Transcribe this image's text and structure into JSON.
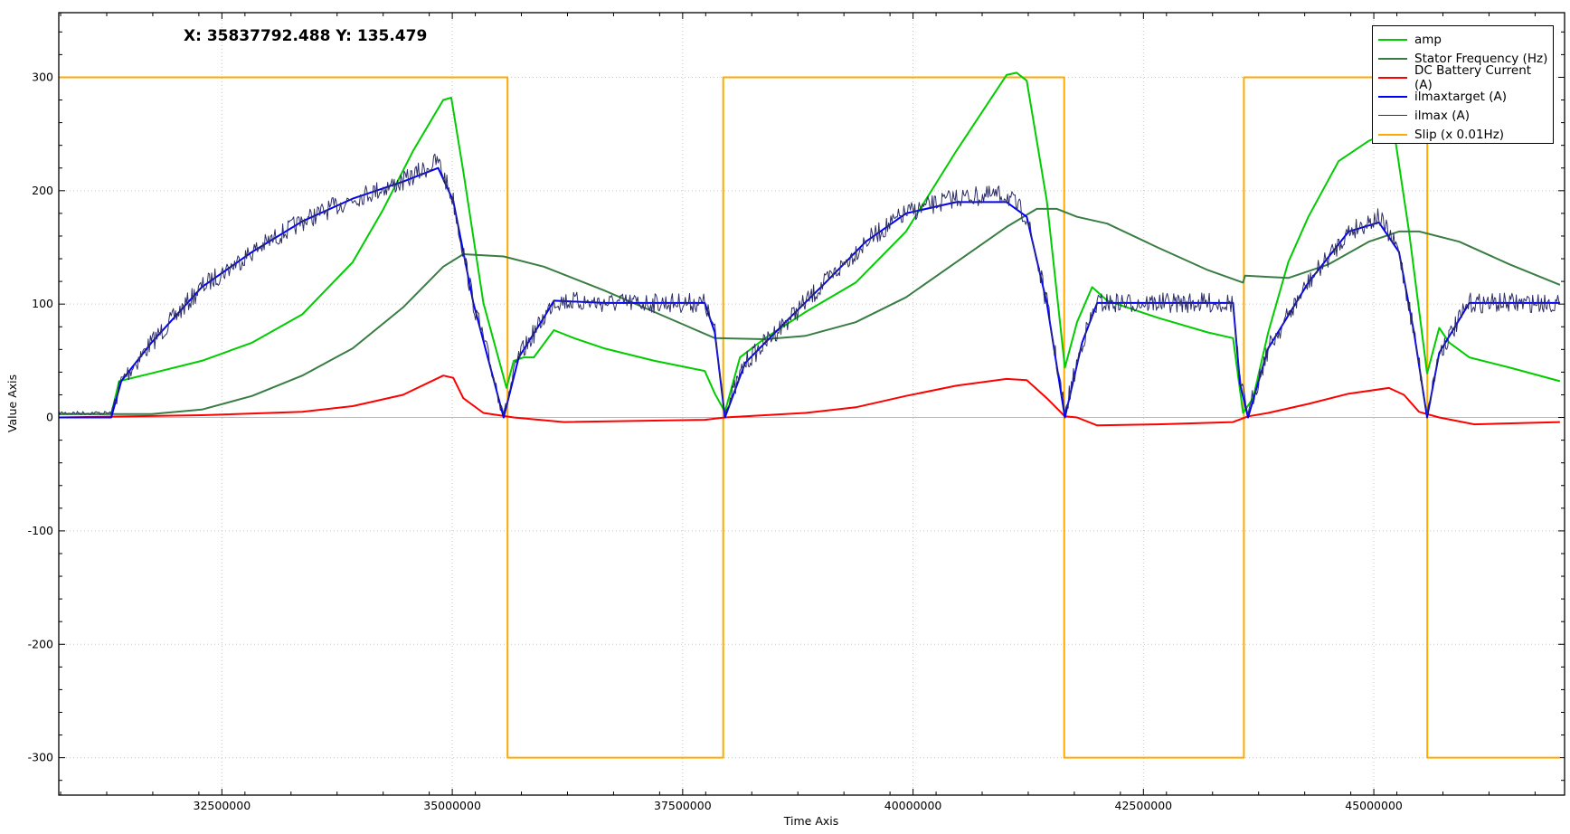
{
  "readout": "X: 35837792.488 Y: 135.479",
  "chart_data": {
    "type": "line",
    "title": "",
    "xlabel": "Time Axis",
    "ylabel": "Value Axis",
    "xlim": [
      30730000,
      47070000
    ],
    "ylim": [
      -333,
      357
    ],
    "xticks": [
      32500000,
      35000000,
      37500000,
      40000000,
      42500000,
      45000000
    ],
    "yticks": [
      -300,
      -200,
      -100,
      0,
      100,
      200,
      300
    ],
    "grid": true,
    "legend_position": "top-right",
    "series": [
      {
        "name": "amp",
        "color": "#00cc00",
        "points": [
          [
            30731000,
            3
          ],
          [
            31299000,
            3
          ],
          [
            31386000,
            32
          ],
          [
            31736000,
            39
          ],
          [
            32282000,
            50
          ],
          [
            32828000,
            66
          ],
          [
            33373000,
            91
          ],
          [
            33919000,
            137
          ],
          [
            34247000,
            183
          ],
          [
            34574000,
            235
          ],
          [
            34902000,
            280
          ],
          [
            34989000,
            282
          ],
          [
            35120000,
            217
          ],
          [
            35338000,
            101
          ],
          [
            35589000,
            26
          ],
          [
            35666000,
            50
          ],
          [
            35775000,
            53
          ],
          [
            35884000,
            53
          ],
          [
            36103000,
            77
          ],
          [
            36321000,
            70
          ],
          [
            36648000,
            61
          ],
          [
            37194000,
            50
          ],
          [
            37740000,
            41
          ],
          [
            37849000,
            21
          ],
          [
            37959000,
            5
          ],
          [
            38122000,
            53
          ],
          [
            38395000,
            70
          ],
          [
            38832000,
            93
          ],
          [
            39378000,
            119
          ],
          [
            39924000,
            164
          ],
          [
            40469000,
            235
          ],
          [
            41015000,
            302
          ],
          [
            41124000,
            304
          ],
          [
            41234000,
            297
          ],
          [
            41452000,
            191
          ],
          [
            41648000,
            44
          ],
          [
            41779000,
            84
          ],
          [
            41943000,
            115
          ],
          [
            42107000,
            103
          ],
          [
            42653000,
            88
          ],
          [
            43199000,
            75
          ],
          [
            43472000,
            70
          ],
          [
            43581000,
            4
          ],
          [
            43690000,
            17
          ],
          [
            43854000,
            75
          ],
          [
            44072000,
            137
          ],
          [
            44290000,
            177
          ],
          [
            44618000,
            226
          ],
          [
            44945000,
            244
          ],
          [
            45218000,
            253
          ],
          [
            45382000,
            164
          ],
          [
            45578000,
            39
          ],
          [
            45710000,
            79
          ],
          [
            45819000,
            66
          ],
          [
            46037000,
            53
          ],
          [
            46474000,
            44
          ],
          [
            47020000,
            32
          ]
        ]
      },
      {
        "name": "Stator Frequency (Hz)",
        "color": "#3a7d44",
        "points": [
          [
            30731000,
            3
          ],
          [
            31736000,
            3
          ],
          [
            32282000,
            7
          ],
          [
            32828000,
            19
          ],
          [
            33373000,
            37
          ],
          [
            33919000,
            61
          ],
          [
            34465000,
            97
          ],
          [
            34902000,
            133
          ],
          [
            35120000,
            144
          ],
          [
            35557000,
            142
          ],
          [
            35993000,
            133
          ],
          [
            36648000,
            112
          ],
          [
            37194000,
            93
          ],
          [
            37849000,
            70
          ],
          [
            38395000,
            69
          ],
          [
            38832000,
            72
          ],
          [
            39378000,
            84
          ],
          [
            39924000,
            106
          ],
          [
            40469000,
            137
          ],
          [
            41015000,
            168
          ],
          [
            41343000,
            184
          ],
          [
            41561000,
            184
          ],
          [
            41779000,
            177
          ],
          [
            42107000,
            171
          ],
          [
            42653000,
            150
          ],
          [
            43199000,
            130
          ],
          [
            43581000,
            119
          ],
          [
            43603000,
            125
          ],
          [
            44072000,
            123
          ],
          [
            44509000,
            135
          ],
          [
            44945000,
            155
          ],
          [
            45273000,
            164
          ],
          [
            45491000,
            164
          ],
          [
            45928000,
            155
          ],
          [
            46474000,
            135
          ],
          [
            47020000,
            117
          ]
        ]
      },
      {
        "name": "DC Battery Current (A)",
        "color": "#ff0000",
        "points": [
          [
            30731000,
            0
          ],
          [
            32282000,
            2
          ],
          [
            33373000,
            5
          ],
          [
            33919000,
            10
          ],
          [
            34465000,
            20
          ],
          [
            34902000,
            37
          ],
          [
            35011000,
            35
          ],
          [
            35120000,
            17
          ],
          [
            35338000,
            4
          ],
          [
            35666000,
            0
          ],
          [
            36212000,
            -4
          ],
          [
            37740000,
            -2
          ],
          [
            37959000,
            0
          ],
          [
            38832000,
            4
          ],
          [
            39378000,
            9
          ],
          [
            39924000,
            19
          ],
          [
            40469000,
            28
          ],
          [
            41015000,
            34
          ],
          [
            41234000,
            33
          ],
          [
            41452000,
            17
          ],
          [
            41648000,
            1
          ],
          [
            41779000,
            0
          ],
          [
            41998000,
            -7
          ],
          [
            42653000,
            -6
          ],
          [
            43472000,
            -4
          ],
          [
            43635000,
            1
          ],
          [
            43854000,
            4
          ],
          [
            44290000,
            12
          ],
          [
            44727000,
            21
          ],
          [
            45164000,
            26
          ],
          [
            45327000,
            20
          ],
          [
            45491000,
            5
          ],
          [
            45710000,
            0
          ],
          [
            46092000,
            -6
          ],
          [
            47020000,
            -4
          ]
        ]
      },
      {
        "name": "ilmaxtarget (A)",
        "color": "#0000ff",
        "points": [
          [
            30731000,
            0
          ],
          [
            31299000,
            0
          ],
          [
            31408000,
            32
          ],
          [
            31736000,
            66
          ],
          [
            32282000,
            115
          ],
          [
            32828000,
            146
          ],
          [
            33373000,
            173
          ],
          [
            33919000,
            193
          ],
          [
            34465000,
            208
          ],
          [
            34847000,
            220
          ],
          [
            35011000,
            191
          ],
          [
            35229000,
            101
          ],
          [
            35557000,
            0
          ],
          [
            35721000,
            53
          ],
          [
            35993000,
            88
          ],
          [
            36103000,
            103
          ],
          [
            36648000,
            101
          ],
          [
            37740000,
            101
          ],
          [
            37849000,
            75
          ],
          [
            37959000,
            0
          ],
          [
            38177000,
            48
          ],
          [
            38614000,
            84
          ],
          [
            39050000,
            119
          ],
          [
            39487000,
            155
          ],
          [
            39924000,
            180
          ],
          [
            40469000,
            190
          ],
          [
            41015000,
            190
          ],
          [
            41234000,
            177
          ],
          [
            41452000,
            101
          ],
          [
            41648000,
            0
          ],
          [
            41834000,
            66
          ],
          [
            41998000,
            101
          ],
          [
            42653000,
            101
          ],
          [
            43472000,
            101
          ],
          [
            43548000,
            30
          ],
          [
            43635000,
            0
          ],
          [
            43854000,
            61
          ],
          [
            44290000,
            119
          ],
          [
            44727000,
            164
          ],
          [
            45055000,
            172
          ],
          [
            45273000,
            146
          ],
          [
            45436000,
            75
          ],
          [
            45578000,
            0
          ],
          [
            45710000,
            57
          ],
          [
            46037000,
            101
          ],
          [
            47020000,
            101
          ]
        ]
      },
      {
        "name": "ilmax (A)",
        "color": "#2e2e66",
        "points": [
          [
            30731000,
            4
          ],
          [
            31299000,
            4
          ],
          [
            31408000,
            32
          ],
          [
            31736000,
            66
          ],
          [
            32282000,
            115
          ],
          [
            32828000,
            146
          ],
          [
            33373000,
            173
          ],
          [
            33919000,
            193
          ],
          [
            34465000,
            208
          ],
          [
            34847000,
            226
          ],
          [
            35011000,
            191
          ],
          [
            35229000,
            101
          ],
          [
            35557000,
            4
          ],
          [
            35721000,
            53
          ],
          [
            35993000,
            88
          ],
          [
            36103000,
            103
          ],
          [
            36648000,
            101
          ],
          [
            37740000,
            101
          ],
          [
            37849000,
            75
          ],
          [
            37959000,
            4
          ],
          [
            38177000,
            48
          ],
          [
            38614000,
            84
          ],
          [
            39050000,
            119
          ],
          [
            39487000,
            155
          ],
          [
            39924000,
            180
          ],
          [
            40469000,
            194
          ],
          [
            41015000,
            196
          ],
          [
            41234000,
            177
          ],
          [
            41452000,
            101
          ],
          [
            41648000,
            4
          ],
          [
            41834000,
            66
          ],
          [
            41998000,
            101
          ],
          [
            42653000,
            101
          ],
          [
            43472000,
            101
          ],
          [
            43548000,
            30
          ],
          [
            43635000,
            4
          ],
          [
            43854000,
            61
          ],
          [
            44290000,
            119
          ],
          [
            44727000,
            164
          ],
          [
            45055000,
            177
          ],
          [
            45273000,
            146
          ],
          [
            45436000,
            75
          ],
          [
            45578000,
            4
          ],
          [
            45710000,
            57
          ],
          [
            46037000,
            101
          ],
          [
            47020000,
            101
          ]
        ]
      },
      {
        "name": "Slip (x 0.01Hz)",
        "color": "#ffaa00",
        "points": [
          [
            30731000,
            300
          ],
          [
            35600000,
            300
          ],
          [
            35600000,
            -300
          ],
          [
            37940000,
            -300
          ],
          [
            37940000,
            300
          ],
          [
            41640000,
            300
          ],
          [
            41640000,
            -300
          ],
          [
            43590000,
            -300
          ],
          [
            43590000,
            300
          ],
          [
            45580000,
            300
          ],
          [
            45580000,
            -300
          ],
          [
            47020000,
            -300
          ]
        ]
      }
    ]
  }
}
